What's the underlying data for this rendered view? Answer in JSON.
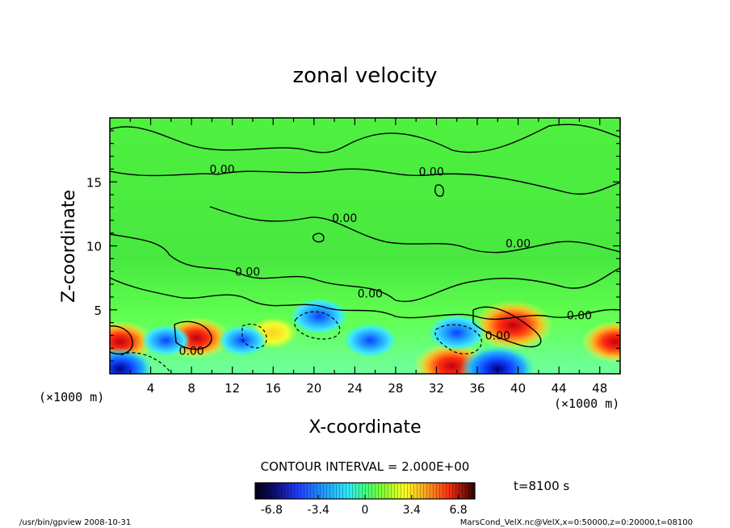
{
  "chart_data": {
    "type": "heatmap",
    "title": "zonal velocity",
    "xlabel": "X-coordinate",
    "ylabel": "Z-coordinate",
    "x_unit_left": "(×1000 m)",
    "x_unit_right": "(×1000 m)",
    "xlim": [
      0,
      50
    ],
    "ylim": [
      0,
      20
    ],
    "x_ticks": [
      4,
      8,
      12,
      16,
      20,
      24,
      28,
      32,
      36,
      40,
      44,
      48
    ],
    "y_ticks": [
      5,
      10,
      15
    ],
    "contour_interval_text": "CONTOUR INTERVAL = 2.000E+00",
    "contour_labels": [
      "0.00",
      "0.00",
      "0.00",
      "0.00",
      "0.00",
      "0.00",
      "0.00",
      "0.00",
      "0.00"
    ],
    "colorbar": {
      "min": -8,
      "max": 8,
      "ticks": [
        "-6.8",
        "-3.4",
        "0",
        "3.4",
        "6.8"
      ],
      "colors": [
        "#000010",
        "#101080",
        "#2040ff",
        "#20a0ff",
        "#30e8ff",
        "#40ffa0",
        "#50ff40",
        "#a0ff20",
        "#ffff20",
        "#ffb020",
        "#ff4010",
        "#c00010",
        "#200000"
      ]
    },
    "features": [
      {
        "x": 1,
        "z": 2.5,
        "value": 5,
        "sign": "positive"
      },
      {
        "x": 8.5,
        "z": 2.8,
        "value": 5,
        "sign": "positive"
      },
      {
        "x": 39.5,
        "z": 3.8,
        "value": 6.5,
        "sign": "positive"
      },
      {
        "x": 33.5,
        "z": 0.6,
        "value": 6,
        "sign": "positive"
      },
      {
        "x": 49.5,
        "z": 2.5,
        "value": 5,
        "sign": "positive"
      },
      {
        "x": 16,
        "z": 3.2,
        "value": 3,
        "sign": "positive"
      },
      {
        "x": 20.5,
        "z": 4.5,
        "value": -4,
        "sign": "negative"
      },
      {
        "x": 34,
        "z": 3.2,
        "value": -4,
        "sign": "negative"
      },
      {
        "x": 5.5,
        "z": 2.6,
        "value": -3,
        "sign": "negative"
      },
      {
        "x": 13,
        "z": 2.6,
        "value": -3,
        "sign": "negative"
      },
      {
        "x": 38,
        "z": 0.4,
        "value": -6,
        "sign": "negative"
      },
      {
        "x": 1,
        "z": 0.4,
        "value": -5,
        "sign": "negative"
      },
      {
        "x": 25.5,
        "z": 2.6,
        "value": -3.5,
        "sign": "negative"
      }
    ]
  },
  "time_label": "t=8100 s",
  "footer_left": "/usr/bin/gpview   2008-10-31",
  "footer_right": "MarsCond_VelX.nc@VelX,x=0:50000,z=0:20000,t=08100"
}
